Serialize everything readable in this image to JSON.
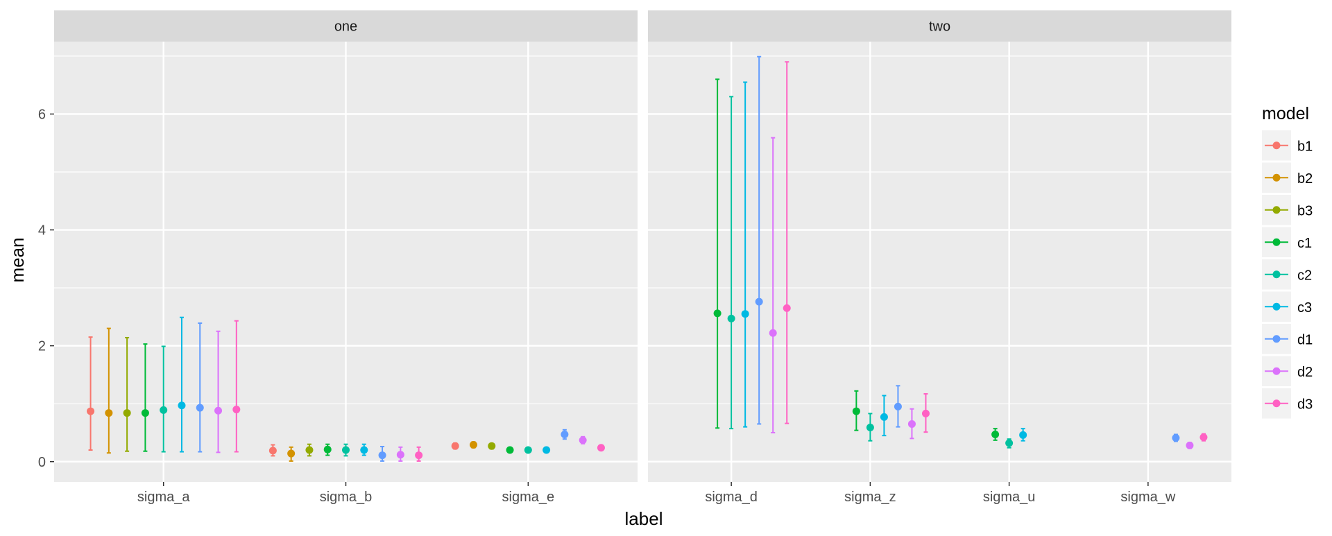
{
  "chart_data": {
    "type": "scatter",
    "xlabel": "label",
    "ylabel": "mean",
    "ylim": [
      -0.35,
      7.25
    ],
    "y_ticks": [
      0,
      2,
      4,
      6
    ],
    "y_tick_labels": [
      "0",
      "2",
      "4",
      "6"
    ],
    "grid": true,
    "legend": {
      "title": "model",
      "placement": "right"
    },
    "models": [
      "b1",
      "b2",
      "b3",
      "c1",
      "c2",
      "c3",
      "d1",
      "d2",
      "d3"
    ],
    "colors": {
      "b1": "#F8766D",
      "b2": "#D39200",
      "b3": "#93AA00",
      "c1": "#00BA38",
      "c2": "#00C19F",
      "c3": "#00B9E3",
      "d1": "#619CFF",
      "d2": "#DB72FB",
      "d3": "#FF61C3"
    },
    "facets": [
      {
        "name": "one",
        "categories": [
          "sigma_a",
          "sigma_b",
          "sigma_e"
        ],
        "points": [
          {
            "category": "sigma_a",
            "model": "b1",
            "mean": 0.87,
            "low": 0.2,
            "high": 2.15
          },
          {
            "category": "sigma_a",
            "model": "b2",
            "mean": 0.84,
            "low": 0.15,
            "high": 2.3
          },
          {
            "category": "sigma_a",
            "model": "b3",
            "mean": 0.84,
            "low": 0.18,
            "high": 2.14
          },
          {
            "category": "sigma_a",
            "model": "c1",
            "mean": 0.84,
            "low": 0.18,
            "high": 2.03
          },
          {
            "category": "sigma_a",
            "model": "c2",
            "mean": 0.89,
            "low": 0.17,
            "high": 1.99
          },
          {
            "category": "sigma_a",
            "model": "c3",
            "mean": 0.97,
            "low": 0.17,
            "high": 2.49
          },
          {
            "category": "sigma_a",
            "model": "d1",
            "mean": 0.93,
            "low": 0.17,
            "high": 2.39
          },
          {
            "category": "sigma_a",
            "model": "d2",
            "mean": 0.88,
            "low": 0.16,
            "high": 2.25
          },
          {
            "category": "sigma_a",
            "model": "d3",
            "mean": 0.9,
            "low": 0.17,
            "high": 2.43
          },
          {
            "category": "sigma_b",
            "model": "b1",
            "mean": 0.19,
            "low": 0.1,
            "high": 0.29
          },
          {
            "category": "sigma_b",
            "model": "b2",
            "mean": 0.14,
            "low": 0.01,
            "high": 0.25
          },
          {
            "category": "sigma_b",
            "model": "b3",
            "mean": 0.2,
            "low": 0.1,
            "high": 0.3
          },
          {
            "category": "sigma_b",
            "model": "c1",
            "mean": 0.21,
            "low": 0.11,
            "high": 0.3
          },
          {
            "category": "sigma_b",
            "model": "c2",
            "mean": 0.2,
            "low": 0.1,
            "high": 0.3
          },
          {
            "category": "sigma_b",
            "model": "c3",
            "mean": 0.2,
            "low": 0.11,
            "high": 0.3
          },
          {
            "category": "sigma_b",
            "model": "d1",
            "mean": 0.11,
            "low": 0.01,
            "high": 0.26
          },
          {
            "category": "sigma_b",
            "model": "d2",
            "mean": 0.12,
            "low": 0.01,
            "high": 0.25
          },
          {
            "category": "sigma_b",
            "model": "d3",
            "mean": 0.11,
            "low": 0.01,
            "high": 0.25
          },
          {
            "category": "sigma_e",
            "model": "b1",
            "mean": 0.27,
            "low": 0.22,
            "high": 0.32
          },
          {
            "category": "sigma_e",
            "model": "b2",
            "mean": 0.29,
            "low": 0.24,
            "high": 0.34
          },
          {
            "category": "sigma_e",
            "model": "b3",
            "mean": 0.27,
            "low": 0.22,
            "high": 0.31
          },
          {
            "category": "sigma_e",
            "model": "c1",
            "mean": 0.2,
            "low": 0.17,
            "high": 0.23
          },
          {
            "category": "sigma_e",
            "model": "c2",
            "mean": 0.2,
            "low": 0.17,
            "high": 0.23
          },
          {
            "category": "sigma_e",
            "model": "c3",
            "mean": 0.2,
            "low": 0.17,
            "high": 0.23
          },
          {
            "category": "sigma_e",
            "model": "d1",
            "mean": 0.47,
            "low": 0.39,
            "high": 0.55
          },
          {
            "category": "sigma_e",
            "model": "d2",
            "mean": 0.37,
            "low": 0.31,
            "high": 0.43
          },
          {
            "category": "sigma_e",
            "model": "d3",
            "mean": 0.24,
            "low": 0.2,
            "high": 0.28
          }
        ]
      },
      {
        "name": "two",
        "categories": [
          "sigma_d",
          "sigma_z",
          "sigma_u",
          "sigma_w"
        ],
        "points": [
          {
            "category": "sigma_d",
            "model": "c1",
            "mean": 2.56,
            "low": 0.58,
            "high": 6.6
          },
          {
            "category": "sigma_d",
            "model": "c2",
            "mean": 2.47,
            "low": 0.57,
            "high": 6.3
          },
          {
            "category": "sigma_d",
            "model": "c3",
            "mean": 2.55,
            "low": 0.6,
            "high": 6.55
          },
          {
            "category": "sigma_d",
            "model": "d1",
            "mean": 2.76,
            "low": 0.65,
            "high": 6.99
          },
          {
            "category": "sigma_d",
            "model": "d2",
            "mean": 2.22,
            "low": 0.5,
            "high": 5.59
          },
          {
            "category": "sigma_d",
            "model": "d3",
            "mean": 2.65,
            "low": 0.66,
            "high": 6.9
          },
          {
            "category": "sigma_z",
            "model": "c1",
            "mean": 0.87,
            "low": 0.54,
            "high": 1.22
          },
          {
            "category": "sigma_z",
            "model": "c2",
            "mean": 0.59,
            "low": 0.36,
            "high": 0.83
          },
          {
            "category": "sigma_z",
            "model": "c3",
            "mean": 0.77,
            "low": 0.45,
            "high": 1.14
          },
          {
            "category": "sigma_z",
            "model": "d1",
            "mean": 0.95,
            "low": 0.6,
            "high": 1.31
          },
          {
            "category": "sigma_z",
            "model": "d2",
            "mean": 0.65,
            "low": 0.4,
            "high": 0.91
          },
          {
            "category": "sigma_z",
            "model": "d3",
            "mean": 0.83,
            "low": 0.51,
            "high": 1.17
          },
          {
            "category": "sigma_u",
            "model": "c1",
            "mean": 0.47,
            "low": 0.37,
            "high": 0.57
          },
          {
            "category": "sigma_u",
            "model": "c2",
            "mean": 0.32,
            "low": 0.24,
            "high": 0.39
          },
          {
            "category": "sigma_u",
            "model": "c3",
            "mean": 0.46,
            "low": 0.36,
            "high": 0.57
          },
          {
            "category": "sigma_w",
            "model": "d1",
            "mean": 0.41,
            "low": 0.35,
            "high": 0.47
          },
          {
            "category": "sigma_w",
            "model": "d2",
            "mean": 0.28,
            "low": 0.23,
            "high": 0.33
          },
          {
            "category": "sigma_w",
            "model": "d3",
            "mean": 0.42,
            "low": 0.36,
            "high": 0.48
          }
        ]
      }
    ]
  }
}
